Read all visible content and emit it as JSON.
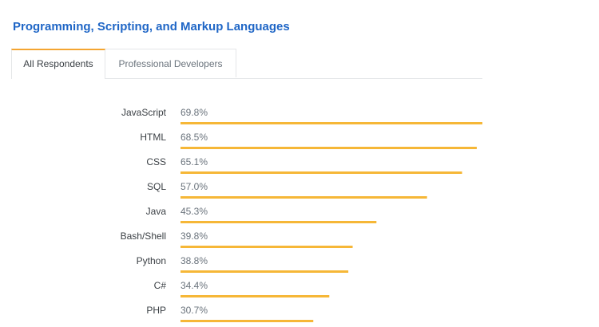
{
  "header": {
    "title": "Programming, Scripting, and Markup Languages"
  },
  "tabs": [
    {
      "label": "All Respondents",
      "active": true
    },
    {
      "label": "Professional Developers",
      "active": false
    }
  ],
  "colors": {
    "accent": "#f4a531",
    "title": "#1f66c6",
    "bar": "#f6b737"
  },
  "chart_data": {
    "type": "bar",
    "orientation": "horizontal",
    "categories": [
      "JavaScript",
      "HTML",
      "CSS",
      "SQL",
      "Java",
      "Bash/Shell",
      "Python",
      "C#",
      "PHP"
    ],
    "values": [
      69.8,
      68.5,
      65.1,
      57.0,
      45.3,
      39.8,
      38.8,
      34.4,
      30.7
    ],
    "value_labels": [
      "69.8%",
      "68.5%",
      "65.1%",
      "57.0%",
      "45.3%",
      "39.8%",
      "38.8%",
      "34.4%",
      "30.7%"
    ],
    "unit": "%",
    "xlim": [
      0,
      69.8
    ],
    "grid": false,
    "legend": "none"
  }
}
